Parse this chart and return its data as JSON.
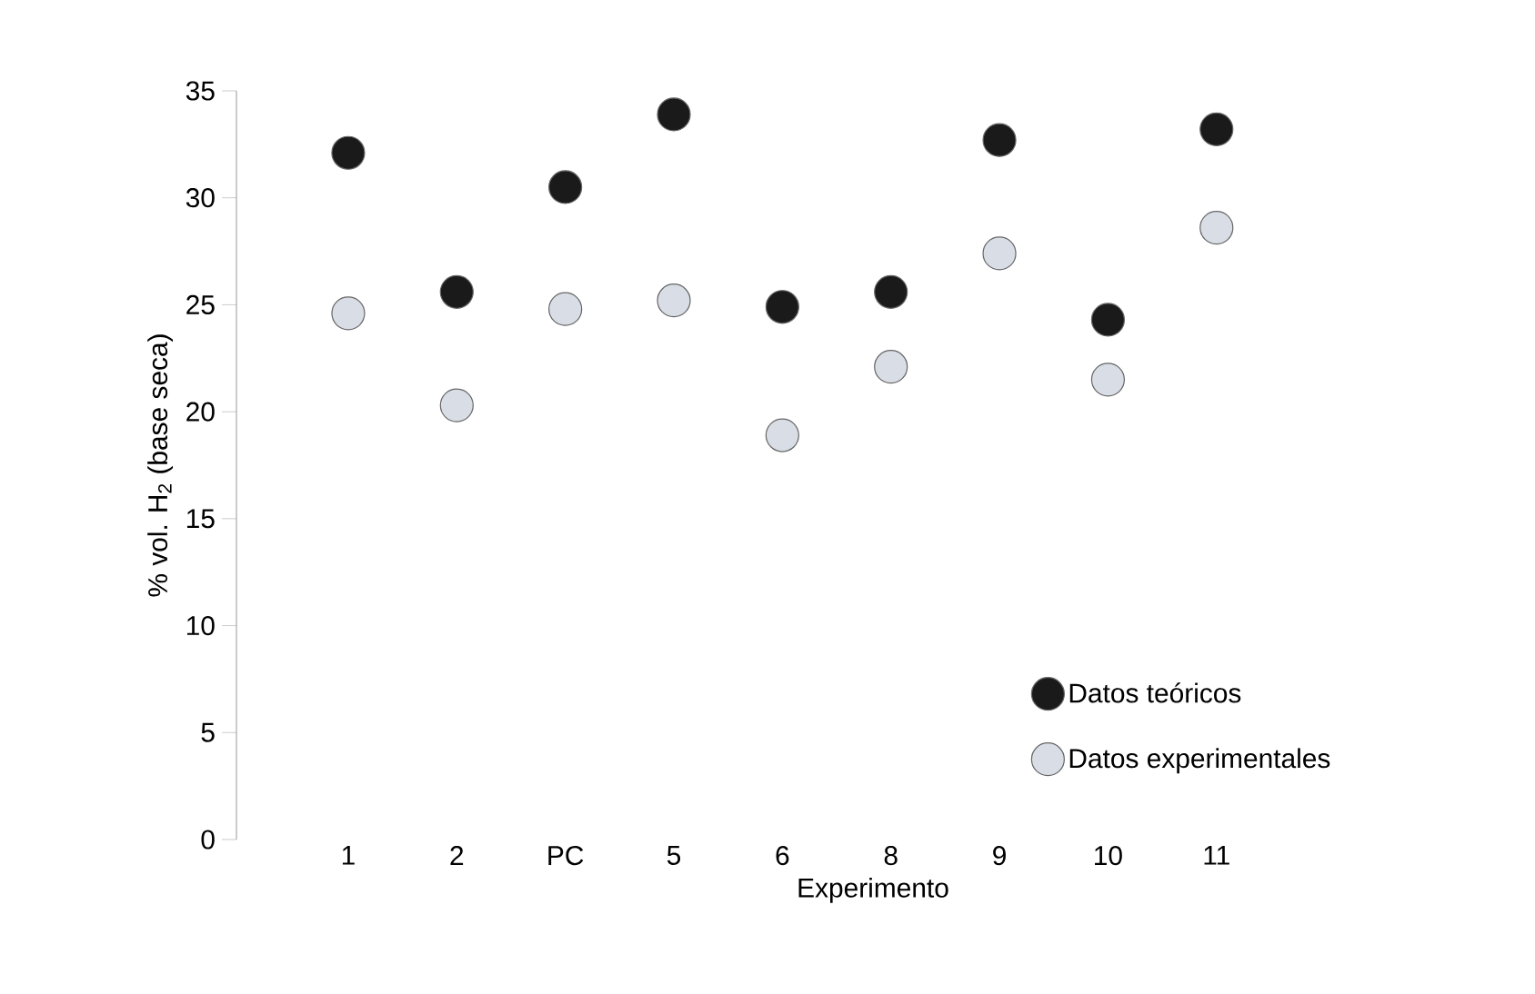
{
  "chart_data": {
    "type": "scatter",
    "xlabel": "Experimento",
    "ylabel": "% vol.  H$_{2}$  (base seca)",
    "categories": [
      "1",
      "2",
      "PC",
      "5",
      "6",
      "8",
      "9",
      "10",
      "11"
    ],
    "series": [
      {
        "name": "Datos teóricos",
        "color": "#1a1a1a",
        "values": [
          32.1,
          25.6,
          30.5,
          33.9,
          24.9,
          25.6,
          32.7,
          24.3,
          33.2
        ]
      },
      {
        "name": "Datos experimentales",
        "color": "#d9dde6",
        "values": [
          24.6,
          20.3,
          24.8,
          25.2,
          18.9,
          22.1,
          27.4,
          21.5,
          28.6
        ]
      }
    ],
    "ylim": [
      0,
      35
    ],
    "yticks": [
      0,
      5,
      10,
      15,
      20,
      25,
      30,
      35
    ],
    "grid": false,
    "legend": "bottom right",
    "marker": "circle"
  }
}
